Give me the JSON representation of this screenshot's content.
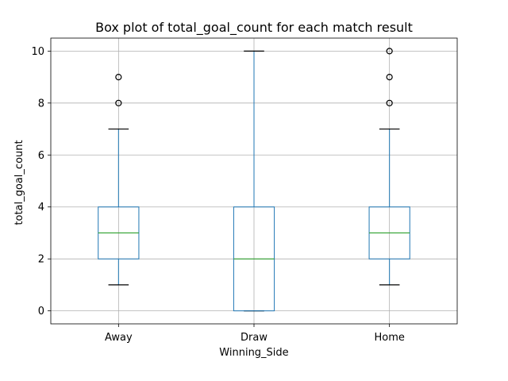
{
  "chart_data": {
    "type": "box",
    "title": "Box plot of total_goal_count for each match result",
    "xlabel": "Winning_Side",
    "ylabel": "total_goal_count",
    "categories": [
      "Away",
      "Draw",
      "Home"
    ],
    "ylim": [
      -0.5,
      10.5
    ],
    "yticks": [
      0,
      2,
      4,
      6,
      8,
      10
    ],
    "grid": true,
    "colors": {
      "box": "#1f77b4",
      "median": "#2ca02c",
      "cap": "#000000",
      "flier": "#000000",
      "grid": "#b0b0b0"
    },
    "boxes": [
      {
        "category": "Away",
        "whisker_low": 1,
        "q1": 2,
        "median": 3,
        "q3": 4,
        "whisker_high": 7,
        "fliers": [
          8,
          9
        ]
      },
      {
        "category": "Draw",
        "whisker_low": 0,
        "q1": 0,
        "median": 2,
        "q3": 4,
        "whisker_high": 10,
        "fliers": []
      },
      {
        "category": "Home",
        "whisker_low": 1,
        "q1": 2,
        "median": 3,
        "q3": 4,
        "whisker_high": 7,
        "fliers": [
          8,
          9,
          10
        ]
      }
    ]
  }
}
